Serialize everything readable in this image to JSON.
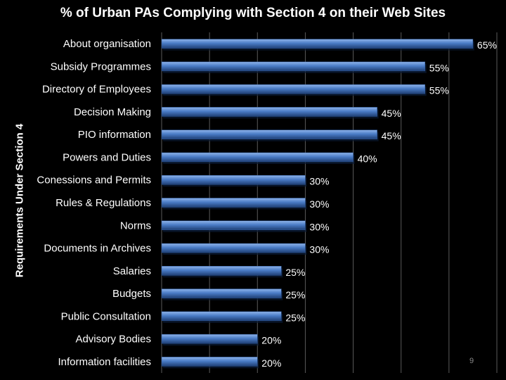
{
  "slide": {
    "page_number": "9"
  },
  "colors": {
    "background": "#000000",
    "bar_light": "#8fb4ea",
    "bar_mid": "#4a7cc6",
    "bar_dark": "#1f3f74",
    "gridline": "#5a5a5a",
    "text": "#ffffff"
  },
  "chart_data": {
    "type": "bar",
    "orientation": "horizontal",
    "title": "% of  Urban PAs Complying with Section 4 on their Web Sites",
    "ylabel": "Requirements Under Section 4",
    "xlabel": "",
    "xlim": [
      0,
      70
    ],
    "grid": true,
    "value_suffix": "%",
    "categories": [
      "About organisation",
      "Subsidy Programmes",
      "Directory of Employees",
      "Decision Making",
      "PIO information",
      "Powers and Duties",
      "Conessions and Permits",
      "Rules & Regulations",
      "Norms",
      "Documents in Archives",
      "Salaries",
      "Budgets",
      "Public Consultation",
      "Advisory Bodies",
      "Information facilities"
    ],
    "values": [
      65,
      55,
      55,
      45,
      45,
      40,
      30,
      30,
      30,
      30,
      25,
      25,
      25,
      20,
      20
    ],
    "data_labels": [
      "65%",
      "55%",
      "55%",
      "45%",
      "45%",
      "40%",
      "30%",
      "30%",
      "30%",
      "30%",
      "25%",
      "25%",
      "25%",
      "20%",
      "20%"
    ]
  }
}
